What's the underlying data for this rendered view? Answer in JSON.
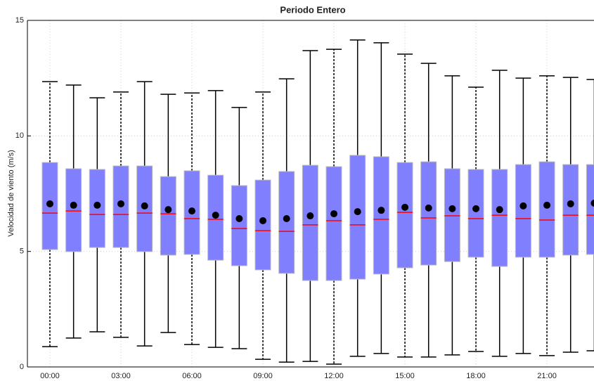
{
  "chart_data": {
    "type": "box",
    "title": "Periodo Entero",
    "ylabel": "Velocidad de viento (m/s)",
    "categories": [
      "00:00",
      null,
      null,
      "03:00",
      null,
      null,
      "06:00",
      null,
      null,
      "09:00",
      null,
      null,
      "12:00",
      null,
      null,
      "15:00",
      null,
      null,
      "18:00",
      null,
      null,
      "21:00",
      null,
      null
    ],
    "whisker_high": [
      12.35,
      12.2,
      11.65,
      11.9,
      12.35,
      11.8,
      11.86,
      11.96,
      11.23,
      11.9,
      12.47,
      13.69,
      13.75,
      14.15,
      14.03,
      13.54,
      13.14,
      12.6,
      12.11,
      12.84,
      12.5,
      12.6,
      12.53,
      12.44
    ],
    "q3": [
      8.85,
      8.58,
      8.55,
      8.7,
      8.7,
      8.24,
      8.49,
      8.3,
      7.85,
      8.09,
      8.46,
      8.73,
      8.67,
      9.16,
      9.1,
      8.85,
      8.88,
      8.58,
      8.55,
      8.55,
      8.76,
      8.88,
      8.76,
      8.76
    ],
    "median": [
      6.66,
      6.75,
      6.6,
      6.6,
      6.66,
      6.63,
      6.42,
      6.39,
      5.99,
      5.9,
      5.87,
      6.15,
      6.33,
      6.15,
      6.39,
      6.69,
      6.45,
      6.54,
      6.42,
      6.57,
      6.42,
      6.36,
      6.57,
      6.57
    ],
    "q1": [
      5.08,
      4.99,
      5.17,
      5.17,
      4.99,
      4.84,
      4.87,
      4.62,
      4.38,
      4.2,
      4.05,
      3.74,
      3.74,
      3.8,
      4.02,
      4.29,
      4.41,
      4.56,
      4.75,
      4.35,
      4.75,
      4.75,
      4.84,
      4.87
    ],
    "whisker_low": [
      0.88,
      1.25,
      1.52,
      1.28,
      0.91,
      1.49,
      0.97,
      0.85,
      0.79,
      0.33,
      0.21,
      0.24,
      0.12,
      0.46,
      0.58,
      0.43,
      0.43,
      0.52,
      0.67,
      0.46,
      0.58,
      0.49,
      0.64,
      0.7
    ],
    "mean": [
      7.06,
      7.0,
      7.0,
      7.06,
      6.97,
      6.81,
      6.75,
      6.57,
      6.42,
      6.33,
      6.42,
      6.54,
      6.63,
      6.72,
      6.78,
      6.91,
      6.88,
      6.85,
      6.85,
      6.81,
      6.97,
      7.0,
      7.06,
      7.09
    ],
    "box_color": "#8080ff",
    "median_color": "#ff0000",
    "mean_color": "#000000",
    "ylim": [
      0,
      15
    ],
    "yticks": [
      0,
      5,
      10,
      15
    ],
    "grid": true
  }
}
